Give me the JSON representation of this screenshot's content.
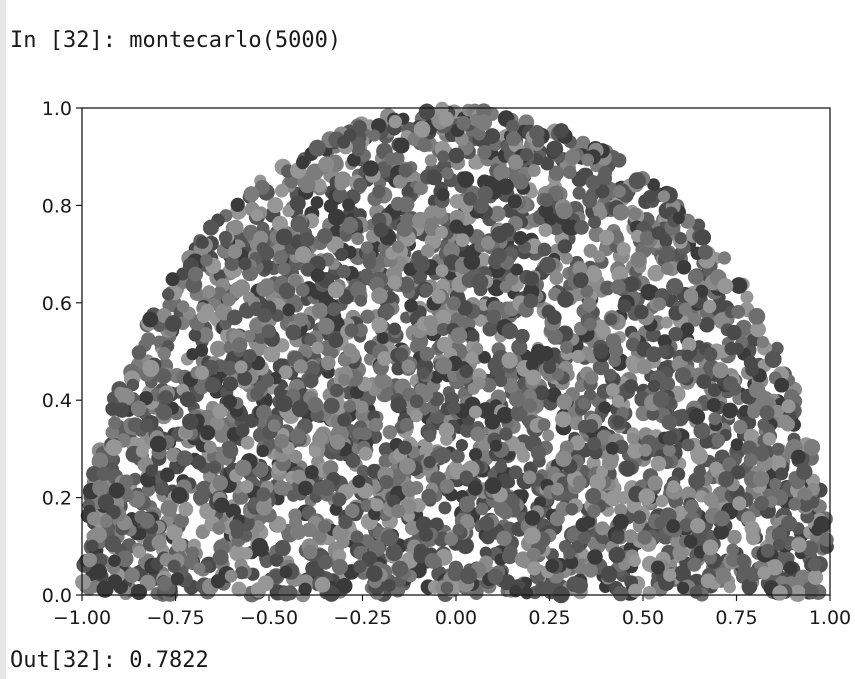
{
  "cell": {
    "input_prompt": "In [32]:",
    "input_code": "montecarlo(5000)",
    "output_prompt": "Out[32]:",
    "output_value": "0.7822"
  },
  "chart_data": {
    "type": "scatter",
    "title": "",
    "xlabel": "",
    "ylabel": "",
    "xlim": [
      -1.0,
      1.0
    ],
    "ylim": [
      0.0,
      1.0
    ],
    "x_ticks": [
      -1.0,
      -0.75,
      -0.5,
      -0.25,
      0.0,
      0.25,
      0.5,
      0.75,
      1.0
    ],
    "x_tick_labels": [
      "−1.00",
      "−0.75",
      "−0.50",
      "−0.25",
      "0.00",
      "0.25",
      "0.50",
      "0.75",
      "1.00"
    ],
    "y_ticks": [
      0.0,
      0.2,
      0.4,
      0.6,
      0.8,
      1.0
    ],
    "y_tick_labels": [
      "0.0",
      "0.2",
      "0.4",
      "0.6",
      "0.8",
      "1.0"
    ],
    "grid": false,
    "legend": "none",
    "n_points": 5000,
    "region": "points with x^2 + y^2 <= 1, upper half disc",
    "marker_colors": [
      "#4a4a4a",
      "#5e5e5e",
      "#6e6e6e",
      "#7c7c7c",
      "#8a8a8a",
      "#3a3a3a",
      "#969696",
      "#555555"
    ]
  }
}
